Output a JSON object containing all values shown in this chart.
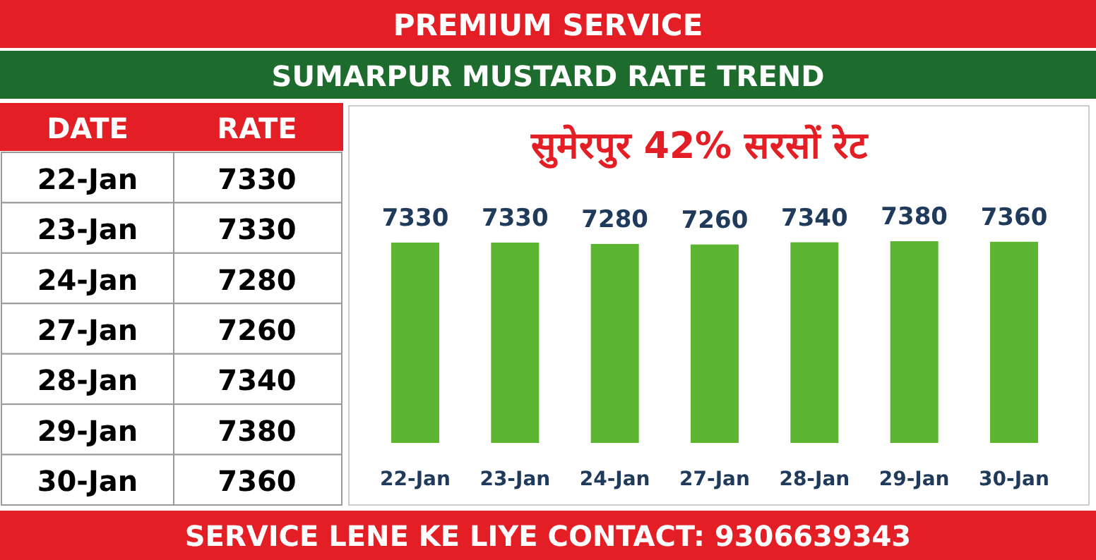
{
  "chart_data": {
    "type": "bar",
    "title": "सुमेरपुर 42% सरसों रेट",
    "subtitle": "SUMARPUR MUSTARD RATE TREND",
    "categories": [
      "22-Jan",
      "23-Jan",
      "24-Jan",
      "27-Jan",
      "28-Jan",
      "29-Jan",
      "30-Jan"
    ],
    "values": [
      7330,
      7330,
      7280,
      7260,
      7340,
      7380,
      7360
    ],
    "color": "#5cb531",
    "data_labels": true,
    "annotations": [
      "PREMIUM SERVICE",
      "DATE",
      "RATE",
      "SERVICE LENE KE LIYE CONTACT: 9306639343",
      "7330",
      "7330",
      "7280",
      "7260",
      "7340",
      "7380",
      "7360"
    ]
  }
}
